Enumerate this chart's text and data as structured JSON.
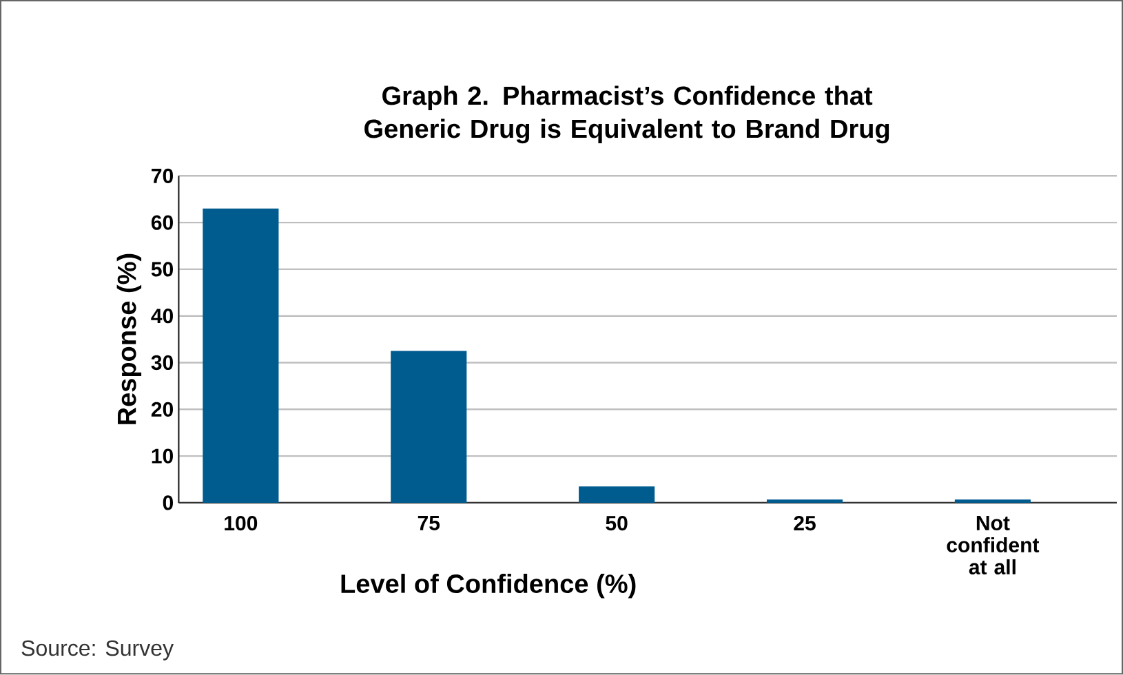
{
  "chart_data": {
    "type": "bar",
    "title": "Graph 2. Pharmacist’s Confidence that Generic Drug is Equivalent to Brand Drug",
    "xlabel": "Level of Confidence (%)",
    "ylabel": "Response (%)",
    "categories": [
      "100",
      "75",
      "50",
      "25",
      "Not confident at all"
    ],
    "values": [
      63,
      32.5,
      3.5,
      0.7,
      0.7
    ],
    "color": "#005b8f",
    "ylim": [
      0,
      70
    ],
    "yticks": [
      0,
      10,
      20,
      30,
      40,
      50,
      60,
      70
    ],
    "grid": "y",
    "annotations": [
      "Source: Survey"
    ]
  }
}
